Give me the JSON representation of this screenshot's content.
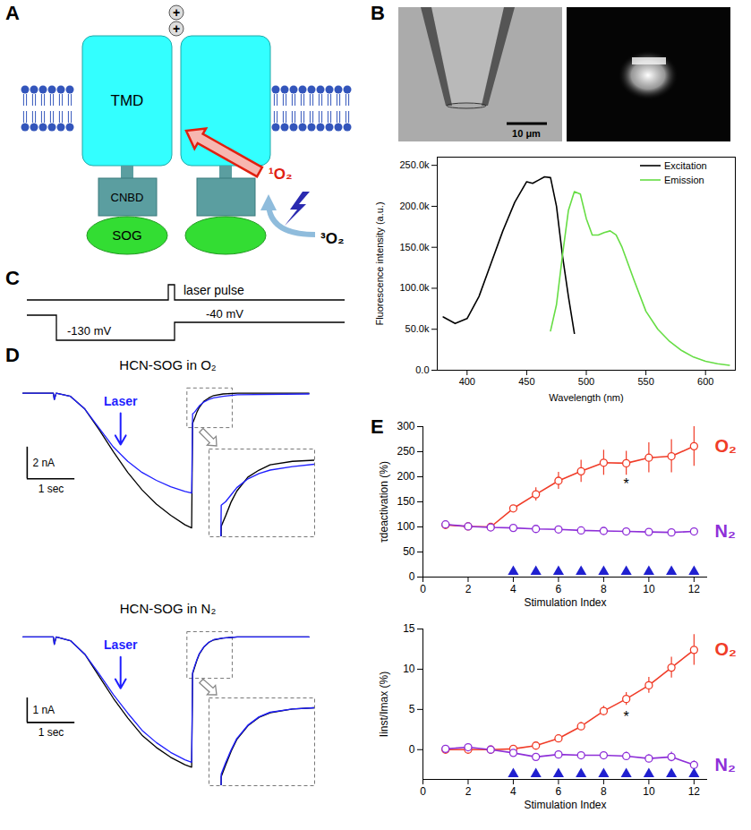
{
  "panel_letters": [
    "A",
    "B",
    "C",
    "D",
    "E"
  ],
  "diagrams": {
    "A": {
      "domain_labels": [
        "TMD",
        "CNBD",
        "SOG"
      ],
      "charges": [
        "+",
        "+"
      ],
      "singlet_oxygen": "¹O₂",
      "triplet_oxygen": "³O₂"
    },
    "B": {
      "scale_bar": "10 μm"
    },
    "C": {
      "laser": "laser pulse",
      "step_level": "-130 mV",
      "holding_level": "-40 mV"
    }
  },
  "chart_data": [
    {
      "type": "line",
      "x_label": "Wavelength (nm)",
      "y_label": "Fluorescence intensity (a.u.)",
      "xlim": [
        375,
        625
      ],
      "xticks": [
        400,
        450,
        500,
        550,
        600
      ],
      "ylim": [
        0,
        260000
      ],
      "yticks": [
        {
          "value": 0,
          "label": "0.0"
        },
        {
          "value": 50000,
          "label": "50.0k"
        },
        {
          "value": 100000,
          "label": "100.0k"
        },
        {
          "value": 150000,
          "label": "150.0k"
        },
        {
          "value": 200000,
          "label": "200.0k"
        },
        {
          "value": 250000,
          "label": "250.0k"
        }
      ],
      "legend": "top-right",
      "series": [
        {
          "name": "Excitation",
          "color": "#000000",
          "x": [
            380,
            390,
            400,
            410,
            420,
            430,
            440,
            450,
            455,
            460,
            465,
            470,
            475,
            480,
            485,
            490
          ],
          "values": [
            65000,
            57000,
            63000,
            90000,
            130000,
            170000,
            205000,
            230000,
            228000,
            232000,
            236000,
            235000,
            200000,
            140000,
            90000,
            45000
          ]
        },
        {
          "name": "Emission",
          "color": "#66dd44",
          "x": [
            470,
            475,
            480,
            485,
            490,
            495,
            500,
            505,
            510,
            515,
            520,
            525,
            530,
            540,
            550,
            560,
            570,
            580,
            590,
            600,
            610,
            620
          ],
          "values": [
            48000,
            80000,
            140000,
            195000,
            218000,
            215000,
            185000,
            165000,
            165000,
            168000,
            170000,
            165000,
            150000,
            110000,
            72000,
            50000,
            35000,
            24000,
            16000,
            11000,
            8000,
            6000
          ]
        }
      ]
    },
    {
      "type": "line",
      "title": "HCN-SOG in O₂",
      "tick_labels": false,
      "x": [
        0,
        0.64,
        0.66,
        0.7,
        1.0,
        1.3,
        1.6,
        1.9,
        2.2,
        2.5,
        2.8,
        3.1,
        3.4,
        3.54,
        3.56,
        3.6,
        3.65,
        3.7,
        3.8,
        3.9,
        4.0,
        4.2,
        4.5,
        6.0
      ],
      "xlim": [
        0,
        6.1
      ],
      "ylim": [
        -9,
        0.6
      ],
      "series": [
        {
          "color": "#000000",
          "values": [
            0,
            0,
            -0.4,
            0,
            -0.2,
            -1.0,
            -2.3,
            -3.7,
            -5.0,
            -6.1,
            -7.0,
            -7.7,
            -8.3,
            -8.5,
            -1.9,
            -1.6,
            -1.2,
            -0.9,
            -0.5,
            -0.3,
            -0.15,
            -0.05,
            0,
            0
          ]
        },
        {
          "color": "#1f1fff",
          "values": [
            0,
            0,
            -0.4,
            0,
            -0.2,
            -1.0,
            -2.2,
            -3.4,
            -4.3,
            -5.0,
            -5.5,
            -5.9,
            -6.2,
            -6.3,
            -1.3,
            -1.2,
            -1.0,
            -0.8,
            -0.55,
            -0.4,
            -0.3,
            -0.2,
            -0.1,
            -0.05
          ]
        }
      ],
      "scale_bars": {
        "x": {
          "value": 1,
          "label": "1 sec"
        },
        "y": {
          "value": 2,
          "label": "2 nA"
        }
      },
      "annotations": [
        {
          "text": "Laser",
          "x": 2.05,
          "color": "#1f1fff"
        }
      ],
      "inset": {
        "xlim": [
          3.45,
          4.4
        ],
        "ylim": [
          -2.2,
          0.3
        ]
      }
    },
    {
      "type": "line",
      "title": "HCN-SOG in N₂",
      "tick_labels": false,
      "x": [
        0,
        0.64,
        0.66,
        0.7,
        1.0,
        1.3,
        1.6,
        1.9,
        2.2,
        2.5,
        2.8,
        3.1,
        3.4,
        3.54,
        3.56,
        3.6,
        3.65,
        3.7,
        3.8,
        3.9,
        4.0,
        4.2,
        4.5,
        6.0
      ],
      "xlim": [
        0,
        6.1
      ],
      "ylim": [
        -5.8,
        0.4
      ],
      "series": [
        {
          "color": "#000000",
          "values": [
            0,
            0,
            -0.3,
            0,
            -0.15,
            -0.7,
            -1.6,
            -2.5,
            -3.3,
            -4.0,
            -4.5,
            -4.9,
            -5.2,
            -5.3,
            -1.5,
            -1.25,
            -0.95,
            -0.7,
            -0.4,
            -0.22,
            -0.12,
            -0.04,
            0,
            0
          ]
        },
        {
          "color": "#1f1fff",
          "values": [
            0,
            0,
            -0.3,
            0,
            -0.15,
            -0.7,
            -1.5,
            -2.35,
            -3.1,
            -3.8,
            -4.3,
            -4.7,
            -5.0,
            -5.1,
            -1.45,
            -1.2,
            -0.92,
            -0.68,
            -0.39,
            -0.21,
            -0.11,
            -0.04,
            0,
            0
          ]
        }
      ],
      "scale_bars": {
        "x": {
          "value": 1,
          "label": "1 sec"
        },
        "y": {
          "value": 1,
          "label": "1 nA"
        }
      },
      "annotations": [
        {
          "text": "Laser",
          "x": 2.05,
          "color": "#1f1fff"
        }
      ],
      "inset": {
        "xlim": [
          3.45,
          4.4
        ],
        "ylim": [
          -1.7,
          0.2
        ]
      }
    },
    {
      "type": "line",
      "x_label": "Stimulation Index",
      "y_label": "τdeactivation (%)",
      "x": [
        1,
        2,
        3,
        4,
        5,
        6,
        7,
        8,
        9,
        10,
        11,
        12
      ],
      "xlim": [
        0,
        12.6
      ],
      "xticks": [
        0,
        2,
        4,
        6,
        8,
        10,
        12
      ],
      "ylim": [
        0,
        300
      ],
      "yticks": [
        0,
        50,
        100,
        150,
        200,
        250,
        300
      ],
      "series": [
        {
          "name": "O₂",
          "color": "#f03c28",
          "marker": "open_circle",
          "values": [
            104,
            101,
            100,
            137,
            165,
            192,
            211,
            228,
            227,
            238,
            241,
            261
          ],
          "errors": [
            2,
            2,
            1,
            6,
            13,
            17,
            22,
            25,
            24,
            30,
            33,
            40
          ]
        },
        {
          "name": "N₂",
          "color": "#8e2fd8",
          "marker": "open_circle",
          "values": [
            105,
            101,
            99,
            98,
            96,
            95,
            93,
            92,
            91,
            90,
            89,
            91
          ],
          "errors": [
            3,
            2,
            1,
            3,
            3,
            3,
            3,
            3,
            3,
            3,
            3,
            4
          ]
        }
      ],
      "stimulations": {
        "x": [
          4,
          5,
          6,
          7,
          8,
          9,
          10,
          11,
          12
        ],
        "color": "#2020d0",
        "marker": "triangle"
      },
      "annotations": [
        {
          "text": "*",
          "x": 9,
          "y": 185
        }
      ]
    },
    {
      "type": "line",
      "x_label": "Stimulation Index",
      "y_label": "Iinst/Imax (%)",
      "x": [
        1,
        2,
        3,
        4,
        5,
        6,
        7,
        8,
        9,
        10,
        11,
        12
      ],
      "xlim": [
        0,
        12.6
      ],
      "xticks": [
        0,
        2,
        4,
        6,
        8,
        10,
        12
      ],
      "ylim": [
        -3.7,
        15
      ],
      "yticks": [
        0,
        5,
        10,
        15
      ],
      "series": [
        {
          "name": "O₂",
          "color": "#f03c28",
          "marker": "open_circle",
          "values": [
            0.0,
            0.0,
            0.0,
            0.1,
            0.5,
            1.4,
            2.9,
            4.8,
            6.3,
            8.0,
            10.2,
            12.4
          ],
          "errors": [
            0.2,
            0.2,
            0.1,
            0.2,
            0.3,
            0.4,
            0.5,
            0.6,
            0.8,
            1.0,
            1.3,
            1.9
          ]
        },
        {
          "name": "N₂",
          "color": "#8e2fd8",
          "marker": "open_circle",
          "values": [
            0.1,
            0.3,
            0.0,
            -0.4,
            -0.9,
            -0.6,
            -0.7,
            -0.7,
            -0.8,
            -1.1,
            -0.9,
            -1.9
          ],
          "errors": [
            0.2,
            0.3,
            0.1,
            0.3,
            0.4,
            0.4,
            0.4,
            0.4,
            0.5,
            0.5,
            0.6,
            0.5
          ]
        }
      ],
      "stimulations": {
        "x": [
          4,
          5,
          6,
          7,
          8,
          9,
          10,
          11,
          12
        ],
        "color": "#2020d0",
        "marker": "triangle"
      },
      "annotations": [
        {
          "text": "*",
          "x": 9,
          "y": 4.0
        }
      ]
    }
  ]
}
